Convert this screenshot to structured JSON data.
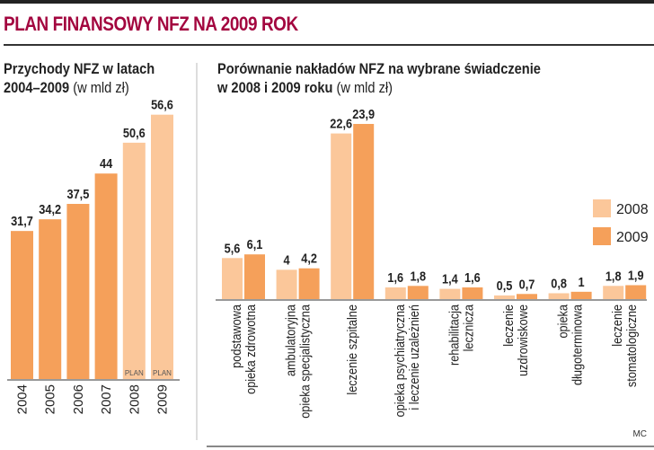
{
  "title": "PLAN FINANSOWY NFZ NA 2009 ROK",
  "credit": "MC",
  "colors": {
    "light": "#fbc79a",
    "dark": "#f5a05a",
    "title": "#a3063f"
  },
  "chart_data": [
    {
      "type": "bar",
      "title_line1": "Przychody NFZ w latach",
      "title_line2": "2004–2009",
      "unit": "(w mld zł)",
      "categories": [
        "2004",
        "2005",
        "2006",
        "2007",
        "2008",
        "2009"
      ],
      "values": [
        31.7,
        34.2,
        37.5,
        44,
        50.6,
        56.6
      ],
      "value_labels": [
        "31,7",
        "34,2",
        "37,5",
        "44",
        "50,6",
        "56,6"
      ],
      "plan_flags": [
        "",
        "",
        "",
        "",
        "PLAN",
        "PLAN"
      ]
    },
    {
      "type": "bar",
      "title_line1": "Porównanie nakładów NFZ na wybrane świadczenie",
      "title_line2": "w 2008 i  2009 roku",
      "unit": "(w mld zł)",
      "legend": [
        "2008",
        "2009"
      ],
      "legend_position": "right",
      "categories": [
        [
          "podstawowa",
          "opieka zdrowotna"
        ],
        [
          "ambulatoryjna",
          "opieka specjalistyczna"
        ],
        [
          "leczenie szpitalne"
        ],
        [
          "opieka psychiatryczna",
          "i leczenie uzależnień"
        ],
        [
          "rehabilitacja",
          "lecznicza"
        ],
        [
          "leczenie",
          "uzdrowiskowe"
        ],
        [
          "opieka",
          "długoterminowa"
        ],
        [
          "leczenie",
          "stomatologiczne"
        ]
      ],
      "series": [
        {
          "name": "2008",
          "values": [
            5.6,
            4,
            22.6,
            1.6,
            1.4,
            0.5,
            0.8,
            1.8
          ],
          "labels": [
            "5,6",
            "4",
            "22,6",
            "1,6",
            "1,4",
            "0,5",
            "0,8",
            "1,8"
          ]
        },
        {
          "name": "2009",
          "values": [
            6.1,
            4.2,
            23.9,
            1.8,
            1.6,
            0.7,
            1,
            1.9
          ],
          "labels": [
            "6,1",
            "4,2",
            "23,9",
            "1,8",
            "1,6",
            "0,7",
            "1",
            "1,9"
          ]
        }
      ]
    }
  ]
}
